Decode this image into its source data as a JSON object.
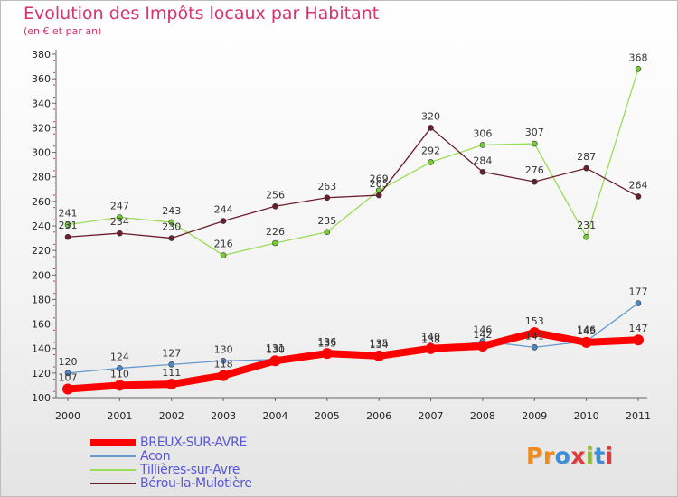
{
  "title": "Evolution des Impôts locaux par Habitant",
  "subtitle": "(en € et par an)",
  "logo": {
    "text": "Proxiti",
    "letters": [
      {
        "ch": "P",
        "color": "#f08a1c"
      },
      {
        "ch": "r",
        "color": "#f08a1c"
      },
      {
        "ch": "o",
        "color": "#3a8fd8"
      },
      {
        "ch": "x",
        "color": "#e03a3a"
      },
      {
        "ch": "i",
        "color": "#8cbe2e"
      },
      {
        "ch": "t",
        "color": "#3a8fd8"
      },
      {
        "ch": "i",
        "color": "#e03a3a"
      }
    ]
  },
  "chart_data": {
    "type": "line",
    "title": "Evolution des Impôts locaux par Habitant",
    "subtitle": "(en € et par an)",
    "x": [
      "2000",
      "2001",
      "2002",
      "2003",
      "2004",
      "2005",
      "2006",
      "2007",
      "2008",
      "2009",
      "2010",
      "2011"
    ],
    "ylim": [
      100,
      380
    ],
    "yticks": [
      100,
      120,
      140,
      160,
      180,
      200,
      220,
      240,
      260,
      280,
      300,
      320,
      340,
      360,
      380
    ],
    "grid": false,
    "legend_position": "bottom-left",
    "series": [
      {
        "name": "Tillières-sur-Avre",
        "color": "#99dd55",
        "marker": "#77cc33",
        "width": 1.3,
        "values": [
          241,
          247,
          243,
          216,
          226,
          235,
          269,
          292,
          306,
          307,
          231,
          368
        ]
      },
      {
        "name": "Bérou-la-Mulotière",
        "color": "#6b1f2e",
        "marker": "#6b1f2e",
        "width": 1.3,
        "values": [
          231,
          234,
          230,
          244,
          256,
          263,
          265,
          320,
          284,
          276,
          287,
          264
        ]
      },
      {
        "name": "Acon",
        "color": "#6699cc",
        "marker": "#4d88c7",
        "width": 1.3,
        "values": [
          120,
          124,
          127,
          130,
          131,
          135,
          135,
          138,
          146,
          141,
          146,
          177
        ]
      },
      {
        "name": "BREUX-SUR-AVRE",
        "color": "#ff0000",
        "marker": "#ff0000",
        "width": 8,
        "values": [
          107,
          110,
          111,
          118,
          130,
          136,
          134,
          140,
          142,
          153,
          145,
          147
        ]
      }
    ],
    "legend_order": [
      "BREUX-SUR-AVRE",
      "Acon",
      "Tillières-sur-Avre",
      "Bérou-la-Mulotière"
    ]
  }
}
